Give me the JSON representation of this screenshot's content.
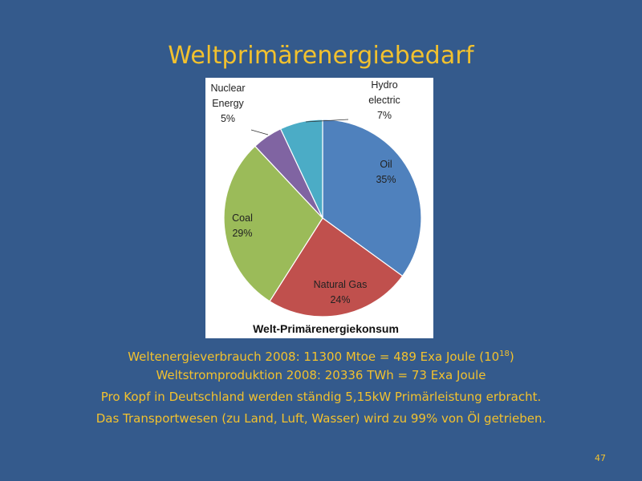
{
  "slide": {
    "title": "Weltprimärenergiebedarf",
    "page_number": "47"
  },
  "chart_data": {
    "type": "pie",
    "title": "Welt-Primärenergiekonsum",
    "slices": [
      {
        "name": "Oil",
        "label_lines": [
          "Oil"
        ],
        "percent_label": "35%",
        "value": 35,
        "color": "#4f81bd"
      },
      {
        "name": "Natural Gas",
        "label_lines": [
          "Natural Gas"
        ],
        "percent_label": "24%",
        "value": 24,
        "color": "#c0504d"
      },
      {
        "name": "Coal",
        "label_lines": [
          "Coal"
        ],
        "percent_label": "29%",
        "value": 29,
        "color": "#9bbb59"
      },
      {
        "name": "Nuclear Energy",
        "label_lines": [
          "Nuclear",
          "Energy"
        ],
        "percent_label": "5%",
        "value": 5,
        "color": "#8064a2"
      },
      {
        "name": "Hydro electric",
        "label_lines": [
          "Hydro",
          "electric"
        ],
        "percent_label": "7%",
        "value": 7,
        "color": "#4bacc6"
      }
    ]
  },
  "text_lines": [
    {
      "main": "Weltenergieverbrauch 2008: 11300 Mtoe = 489 Exa Joule (10",
      "sup": "18",
      "tail": ")"
    },
    {
      "main": "Weltstromproduktion 2008: 20336 TWh =  73 Exa Joule",
      "sup": "",
      "tail": ""
    },
    {
      "main": "Pro Kopf in Deutschland werden ständig 5,15kW Primärleistung erbracht.",
      "sup": "",
      "tail": ""
    },
    {
      "main": "Das Transportwesen (zu Land, Luft, Wasser) wird zu 99% von Öl getrieben.",
      "sup": "",
      "tail": ""
    }
  ]
}
